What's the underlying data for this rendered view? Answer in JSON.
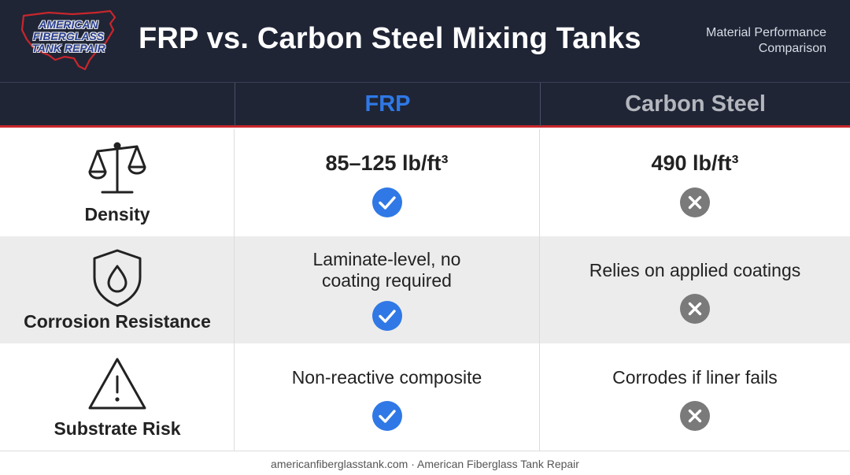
{
  "header": {
    "logo_lines": [
      "American",
      "Fiberglass",
      "Tank Repair"
    ],
    "title": "FRP vs. Carbon Steel Mixing Tanks",
    "subtitle": "Material Performance Comparison"
  },
  "columns": {
    "frp": "FRP",
    "steel": "Carbon Steel"
  },
  "colors": {
    "header_bg": "#1f2535",
    "frp_accent": "#2f78e6",
    "steel_accent": "#b3b6bd",
    "divider_red": "#c9262c",
    "check_blue": "#2f78e6",
    "x_gray": "#7a7a7a"
  },
  "rows": [
    {
      "criterion": "Density",
      "icon": "scale-icon",
      "frp": "85–125 lb/ft³",
      "frp_mark": "check",
      "steel": "490 lb/ft³",
      "steel_mark": "x"
    },
    {
      "criterion": "Corrosion Resistance",
      "icon": "shield-drop-icon",
      "frp": "Laminate-level, no coating required",
      "frp_mark": "check",
      "steel": "Relies on applied coatings",
      "steel_mark": "x"
    },
    {
      "criterion": "Substrate Risk",
      "icon": "warning-icon",
      "frp": "Non-reactive composite",
      "frp_mark": "check",
      "steel": "Corrodes if liner fails",
      "steel_mark": "x"
    }
  ],
  "footer": "americanfiberglasstank.com · American Fiberglass Tank Repair"
}
